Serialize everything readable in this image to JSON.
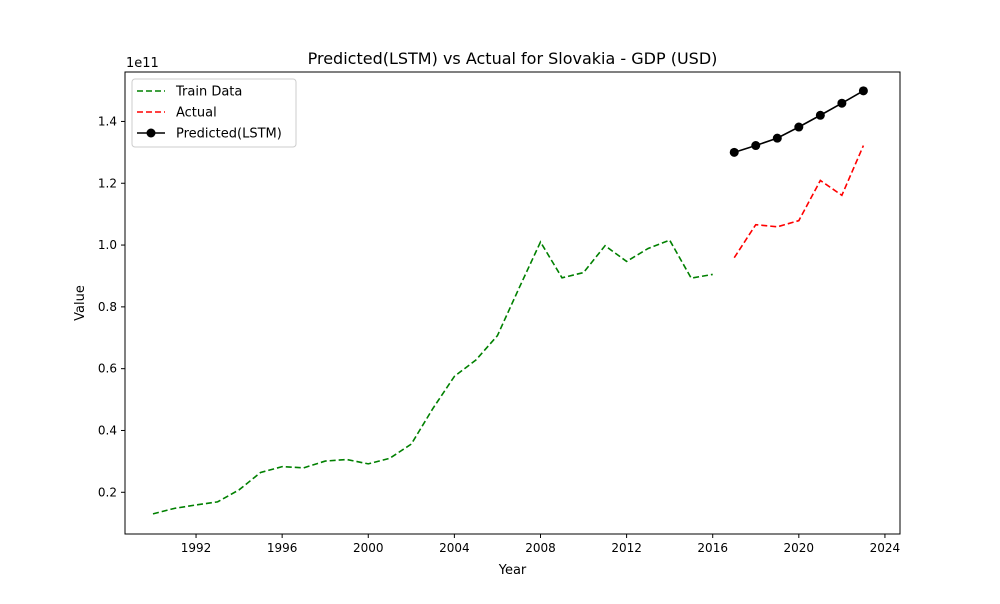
{
  "chart_data": {
    "type": "line",
    "title": "Predicted(LSTM) vs Actual for Slovakia - GDP (USD)",
    "xlabel": "Year",
    "ylabel": "Value",
    "y_offset_label": "1e11",
    "y_scale_factor": 100000000000.0,
    "xlim": [
      1988.7,
      2024.7
    ],
    "ylim": [
      6500000000.0,
      156000000000.0
    ],
    "x_ticks": [
      1992,
      1996,
      2000,
      2004,
      2008,
      2012,
      2016,
      2020,
      2024
    ],
    "y_ticks": [
      20000000000.0,
      40000000000.0,
      60000000000.0,
      80000000000.0,
      100000000000.0,
      120000000000.0,
      140000000000.0
    ],
    "y_tick_labels": [
      "0.2",
      "0.4",
      "0.6",
      "0.8",
      "1.0",
      "1.2",
      "1.4"
    ],
    "grid": false,
    "legend_position": "top-left",
    "series": [
      {
        "name": "Train Data",
        "color": "#008000",
        "style": "dashed",
        "marker": "none",
        "x": [
          1990,
          1991,
          1992,
          1993,
          1994,
          1995,
          1996,
          1997,
          1998,
          1999,
          2000,
          2001,
          2002,
          2003,
          2004,
          2005,
          2006,
          2007,
          2008,
          2009,
          2010,
          2011,
          2012,
          2013,
          2014,
          2015,
          2016
        ],
        "y": [
          13000000000.0,
          14800000000.0,
          15900000000.0,
          16900000000.0,
          20800000000.0,
          26400000000.0,
          28300000000.0,
          27900000000.0,
          30100000000.0,
          30600000000.0,
          29200000000.0,
          31000000000.0,
          35600000000.0,
          47100000000.0,
          57500000000.0,
          62800000000.0,
          70700000000.0,
          86000000000.0,
          101000000000.0,
          89400000000.0,
          91100000000.0,
          99800000000.0,
          94700000000.0,
          98900000000.0,
          101600000000.0,
          89300000000.0,
          90500000000.0
        ]
      },
      {
        "name": "Actual",
        "color": "#ff0000",
        "style": "dashed",
        "marker": "none",
        "x": [
          2017,
          2018,
          2019,
          2020,
          2021,
          2022,
          2023
        ],
        "y": [
          95900000000.0,
          106600000000.0,
          105900000000.0,
          107900000000.0,
          120900000000.0,
          116100000000.0,
          132200000000.0
        ]
      },
      {
        "name": "Predicted(LSTM)",
        "color": "#000000",
        "style": "solid",
        "marker": "circle",
        "x": [
          2017,
          2018,
          2019,
          2020,
          2021,
          2022,
          2023
        ],
        "y": [
          130000000000.0,
          132200000000.0,
          134600000000.0,
          138200000000.0,
          142000000000.0,
          145900000000.0,
          149900000000.0
        ]
      }
    ]
  }
}
